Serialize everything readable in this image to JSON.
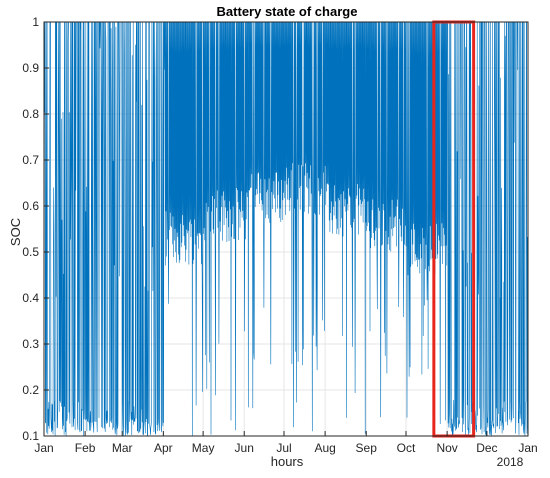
{
  "chart_data": {
    "type": "line",
    "title": "Battery state of charge",
    "xlabel": "hours",
    "ylabel": "SOC",
    "xlim": [
      "2017-01-01",
      "2018-01-01"
    ],
    "ylim": [
      0.1,
      1
    ],
    "grid": true,
    "x_tick_labels": [
      "Jan",
      "Feb",
      "Mar",
      "Apr",
      "May",
      "Jun",
      "Jul",
      "Aug",
      "Sep",
      "Oct",
      "Nov",
      "Dec",
      "Jan"
    ],
    "x_tick_dates": [
      "2017-01-01",
      "2017-02-01",
      "2017-03-01",
      "2017-04-01",
      "2017-05-01",
      "2017-06-01",
      "2017-07-01",
      "2017-08-01",
      "2017-09-01",
      "2017-10-01",
      "2017-11-01",
      "2017-12-01",
      "2018-01-01"
    ],
    "x_secondary_label": "2018",
    "y_ticks": [
      0.1,
      0.2,
      0.3,
      0.4,
      0.5,
      0.6,
      0.7,
      0.8,
      0.9,
      1
    ],
    "y_tick_labels": [
      "0.1",
      "0.2",
      "0.3",
      "0.4",
      "0.5",
      "0.6",
      "0.7",
      "0.8",
      "0.9",
      "1"
    ],
    "line_color": "#0072BD",
    "highlight": {
      "x_start": "2017-10-22",
      "x_end": "2017-11-21",
      "y_range": [
        0.1,
        1
      ],
      "color": "#E8251C"
    },
    "monthly_soc_profile": [
      {
        "month": "Jan",
        "min": 0.1,
        "max": 1,
        "typical_floor": 0.1
      },
      {
        "month": "Feb",
        "min": 0.1,
        "max": 1,
        "typical_floor": 0.1
      },
      {
        "month": "Mar",
        "min": 0.1,
        "max": 1,
        "typical_floor": 0.1
      },
      {
        "month": "Apr",
        "min": 0.1,
        "max": 1,
        "typical_floor": 0.47
      },
      {
        "month": "May",
        "min": 0.1,
        "max": 1,
        "typical_floor": 0.52
      },
      {
        "month": "Jun",
        "min": 0.1,
        "max": 1,
        "typical_floor": 0.56
      },
      {
        "month": "Jul",
        "min": 0.1,
        "max": 1,
        "typical_floor": 0.58
      },
      {
        "month": "Aug",
        "min": 0.1,
        "max": 1,
        "typical_floor": 0.53
      },
      {
        "month": "Sep",
        "min": 0.1,
        "max": 1,
        "typical_floor": 0.5
      },
      {
        "month": "Oct",
        "min": 0.1,
        "max": 1,
        "typical_floor": 0.45
      },
      {
        "month": "Nov",
        "min": 0.1,
        "max": 1,
        "typical_floor": 0.1
      },
      {
        "month": "Dec",
        "min": 0.1,
        "max": 1,
        "typical_floor": 0.1
      }
    ]
  }
}
